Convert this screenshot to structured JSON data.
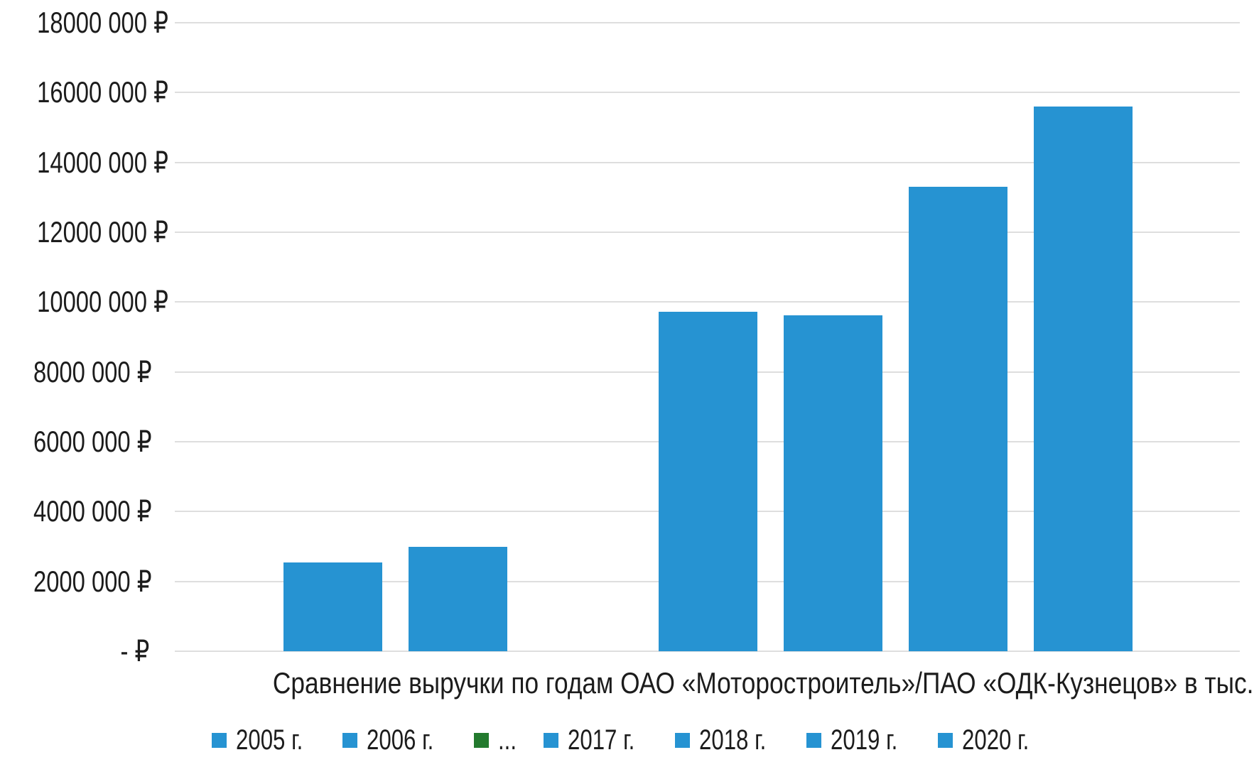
{
  "page": {
    "background": "#ffffff"
  },
  "chart_data": {
    "type": "bar",
    "title": "Сравнение выручки по годам ОАО «Моторостроитель»/ПАО «ОДК-Кузнецов» в тыс. руб",
    "xlabel": "",
    "ylabel": "",
    "unit": "тыс. руб",
    "currency_symbol": "₽",
    "ylim": [
      0,
      18000000
    ],
    "ytick_step": 2000000,
    "grid": true,
    "legend_position": "bottom",
    "yticks": [
      {
        "value": 18000000,
        "label": "18000 000 ₽"
      },
      {
        "value": 16000000,
        "label": "16000 000 ₽"
      },
      {
        "value": 14000000,
        "label": "14000 000 ₽"
      },
      {
        "value": 12000000,
        "label": "12000 000 ₽"
      },
      {
        "value": 10000000,
        "label": "10000 000 ₽"
      },
      {
        "value": 8000000,
        "label": "8000 000 ₽"
      },
      {
        "value": 6000000,
        "label": "6000 000 ₽"
      },
      {
        "value": 4000000,
        "label": "4000 000 ₽"
      },
      {
        "value": 2000000,
        "label": "2000 000 ₽"
      },
      {
        "value": 0,
        "label": "- ₽"
      }
    ],
    "series": [
      {
        "name": "2005 г.",
        "value": 2550000,
        "color": "#2693d2",
        "bar_visible": true
      },
      {
        "name": "2006 г.",
        "value": 3000000,
        "color": "#2693d2",
        "bar_visible": true
      },
      {
        "name": "...",
        "value": 0,
        "color": "#237a2e",
        "bar_visible": false
      },
      {
        "name": "2017 г.",
        "value": 9720000,
        "color": "#2693d2",
        "bar_visible": true
      },
      {
        "name": "2018 г.",
        "value": 9620000,
        "color": "#2693d2",
        "bar_visible": true
      },
      {
        "name": "2019 г.",
        "value": 13300000,
        "color": "#2693d2",
        "bar_visible": true
      },
      {
        "name": "2020 г.",
        "value": 15600000,
        "color": "#2693d2",
        "bar_visible": true
      }
    ],
    "colors": {
      "bar_blue": "#2693d2",
      "legend_green": "#237a2e",
      "gridline": "#dedede",
      "text": "#1c1c1c"
    }
  }
}
